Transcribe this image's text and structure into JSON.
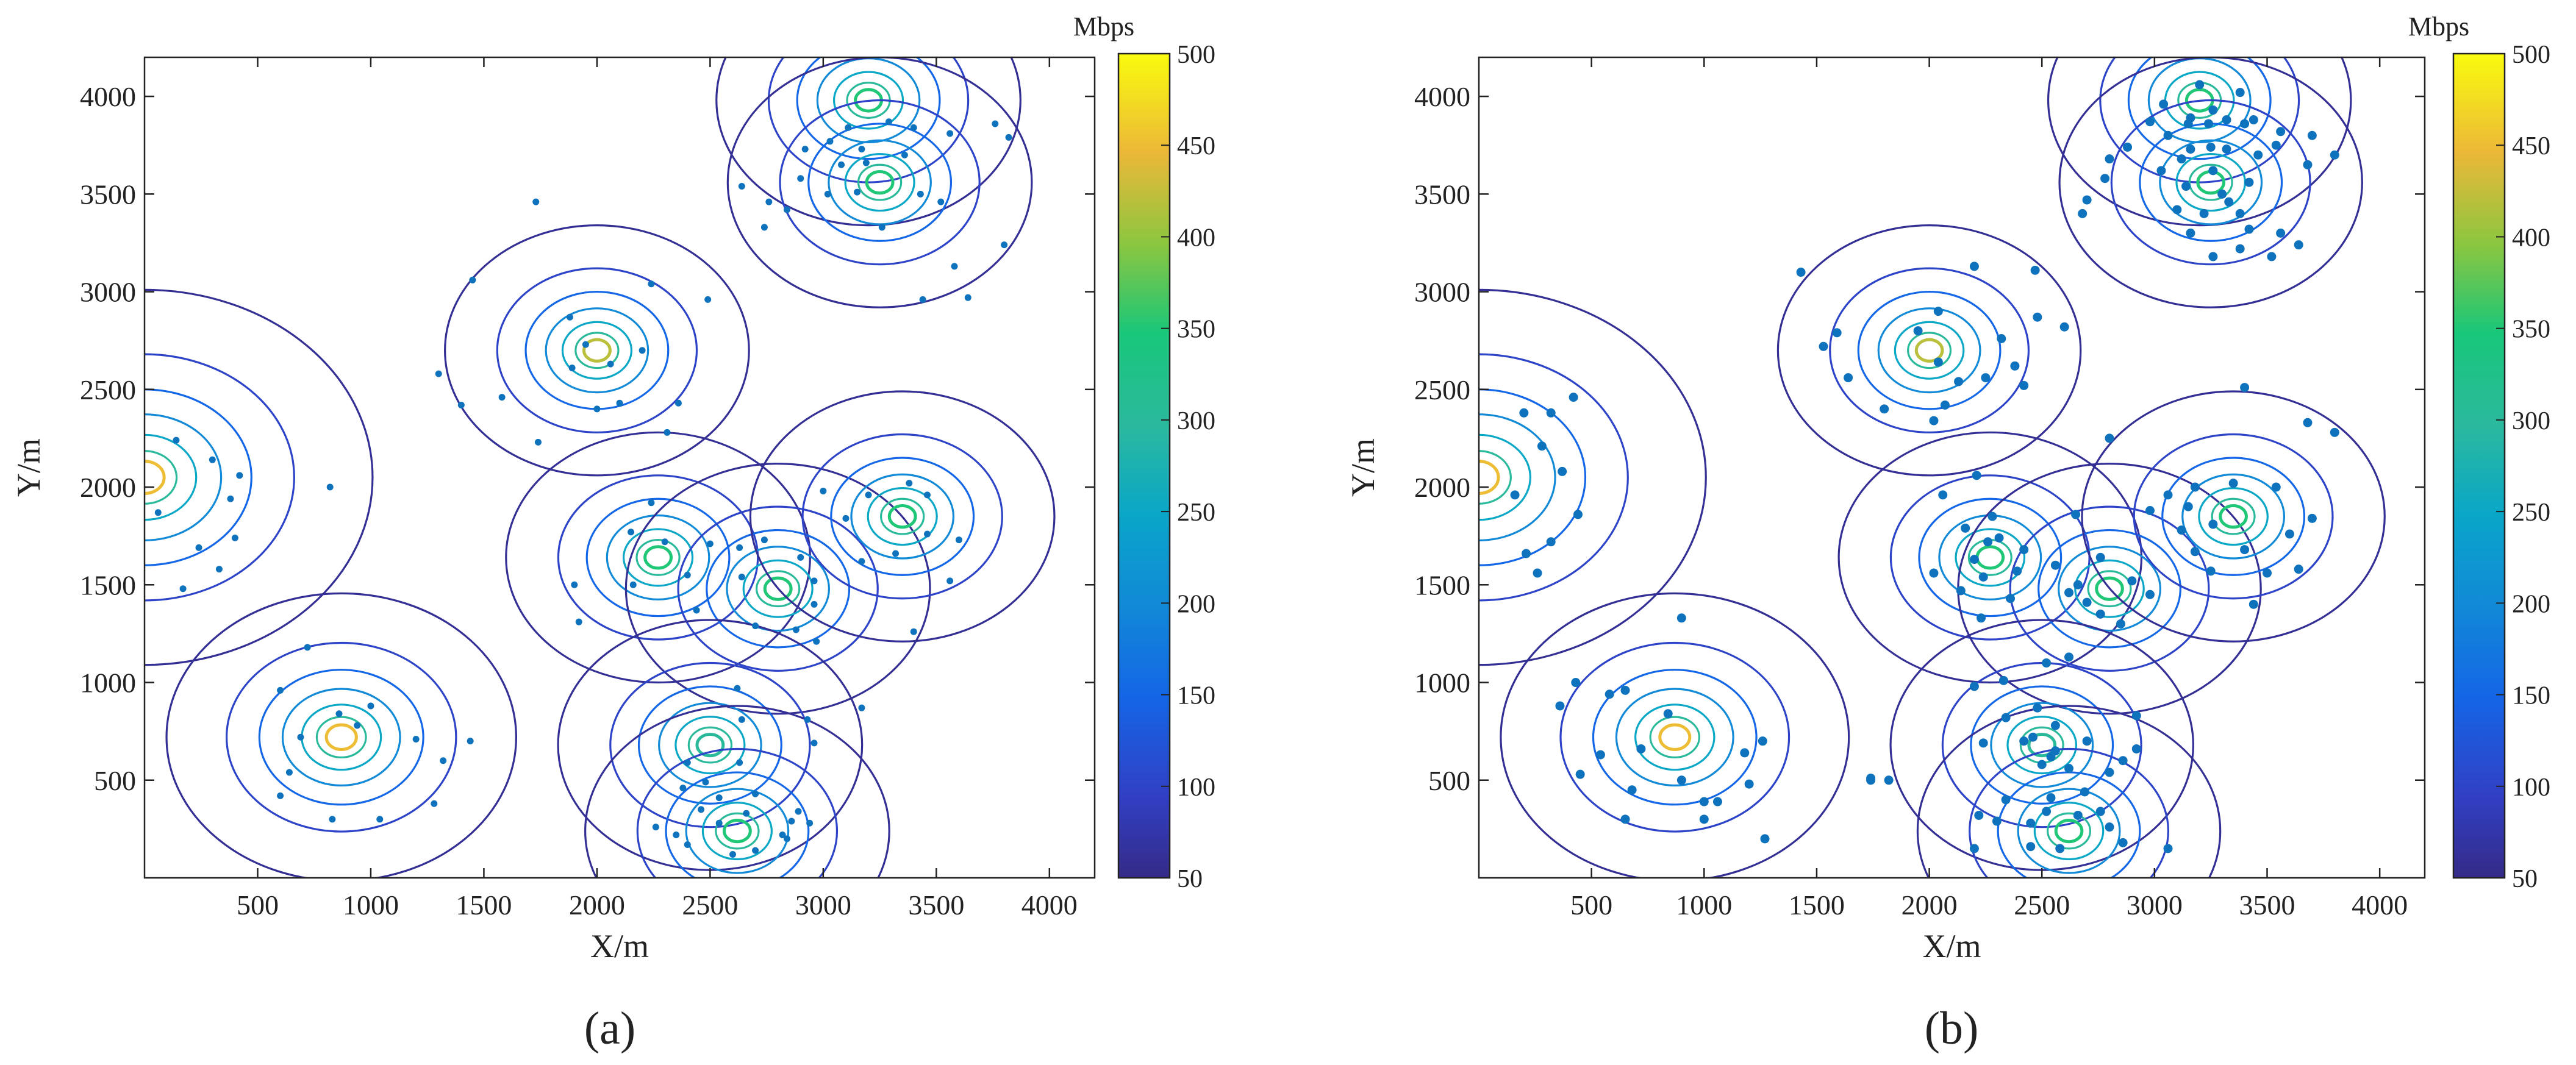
{
  "chart_data": [
    {
      "type": "contour",
      "panel_label": "(a)",
      "xlabel": "X/m",
      "ylabel": "Y/m",
      "xlim": [
        0,
        4200
      ],
      "ylim": [
        0,
        4200
      ],
      "xticks": [
        500,
        1000,
        1500,
        2000,
        2500,
        3000,
        3500,
        4000
      ],
      "yticks": [
        500,
        1000,
        1500,
        2000,
        2500,
        3000,
        3500,
        4000
      ],
      "colorbar": {
        "unit": "Mbps",
        "range": [
          50,
          500
        ],
        "ticks": [
          50,
          100,
          150,
          200,
          250,
          300,
          350,
          400,
          450,
          500
        ]
      },
      "stations": [
        {
          "x": 0,
          "y": 2050,
          "peak": 450
        },
        {
          "x": 870,
          "y": 720,
          "peak": 450
        },
        {
          "x": 2000,
          "y": 2700,
          "peak": 420
        },
        {
          "x": 2270,
          "y": 1640,
          "peak": 350
        },
        {
          "x": 2800,
          "y": 1480,
          "peak": 350
        },
        {
          "x": 3350,
          "y": 1850,
          "peak": 350
        },
        {
          "x": 2500,
          "y": 680,
          "peak": 300
        },
        {
          "x": 2620,
          "y": 240,
          "peak": 350
        },
        {
          "x": 3200,
          "y": 3980,
          "peak": 350
        },
        {
          "x": 3250,
          "y": 3560,
          "peak": 350
        }
      ],
      "users": [
        [
          140,
          2240
        ],
        [
          60,
          1870
        ],
        [
          240,
          1690
        ],
        [
          400,
          1740
        ],
        [
          330,
          1580
        ],
        [
          170,
          1480
        ],
        [
          420,
          2060
        ],
        [
          820,
          2000
        ],
        [
          300,
          2140
        ],
        [
          380,
          1940
        ],
        [
          720,
          1180
        ],
        [
          600,
          960
        ],
        [
          860,
          840
        ],
        [
          940,
          780
        ],
        [
          690,
          720
        ],
        [
          640,
          540
        ],
        [
          600,
          420
        ],
        [
          830,
          300
        ],
        [
          1040,
          300
        ],
        [
          1200,
          710
        ],
        [
          1320,
          600
        ],
        [
          1280,
          380
        ],
        [
          1440,
          700
        ],
        [
          1000,
          880
        ],
        [
          1730,
          3460
        ],
        [
          1450,
          3060
        ],
        [
          1300,
          2580
        ],
        [
          1400,
          2420
        ],
        [
          1580,
          2460
        ],
        [
          1740,
          2230
        ],
        [
          1880,
          2870
        ],
        [
          2060,
          2630
        ],
        [
          2200,
          2700
        ],
        [
          2360,
          2430
        ],
        [
          2240,
          3040
        ],
        [
          2490,
          2960
        ],
        [
          2000,
          2400
        ],
        [
          1890,
          2610
        ],
        [
          2100,
          2430
        ],
        [
          1950,
          2730
        ],
        [
          2310,
          2280
        ],
        [
          2150,
          1770
        ],
        [
          2400,
          1550
        ],
        [
          2440,
          1370
        ],
        [
          2160,
          1500
        ],
        [
          1900,
          1500
        ],
        [
          1920,
          1310
        ],
        [
          2300,
          1720
        ],
        [
          2240,
          1920
        ],
        [
          2500,
          1710
        ],
        [
          2640,
          1540
        ],
        [
          2740,
          1730
        ],
        [
          2900,
          1640
        ],
        [
          2960,
          1400
        ],
        [
          2880,
          1270
        ],
        [
          2700,
          1290
        ],
        [
          2970,
          1210
        ],
        [
          2960,
          1520
        ],
        [
          2630,
          1690
        ],
        [
          3100,
          1840
        ],
        [
          3200,
          1960
        ],
        [
          3460,
          1760
        ],
        [
          3600,
          1730
        ],
        [
          3380,
          2020
        ],
        [
          3560,
          1520
        ],
        [
          3400,
          1260
        ],
        [
          3170,
          1620
        ],
        [
          3460,
          1960
        ],
        [
          3000,
          1980
        ],
        [
          3320,
          1660
        ],
        [
          2400,
          590
        ],
        [
          2640,
          810
        ],
        [
          2930,
          810
        ],
        [
          2960,
          690
        ],
        [
          3170,
          870
        ],
        [
          2630,
          590
        ],
        [
          2480,
          490
        ],
        [
          2380,
          460
        ],
        [
          2540,
          410
        ],
        [
          2600,
          120
        ],
        [
          2400,
          170
        ],
        [
          2260,
          260
        ],
        [
          2840,
          200
        ],
        [
          2890,
          340
        ],
        [
          2940,
          280
        ],
        [
          2820,
          220
        ],
        [
          2660,
          330
        ],
        [
          2700,
          140
        ],
        [
          2460,
          350
        ],
        [
          2540,
          280
        ],
        [
          2620,
          970
        ],
        [
          2350,
          220
        ],
        [
          2700,
          430
        ],
        [
          2860,
          290
        ],
        [
          3290,
          3870
        ],
        [
          3400,
          3840
        ],
        [
          3560,
          3810
        ],
        [
          3760,
          3860
        ],
        [
          3820,
          3790
        ],
        [
          3170,
          3730
        ],
        [
          3030,
          3770
        ],
        [
          2920,
          3730
        ],
        [
          2640,
          3540
        ],
        [
          2760,
          3460
        ],
        [
          2740,
          3330
        ],
        [
          3020,
          3500
        ],
        [
          3260,
          3330
        ],
        [
          3430,
          3500
        ],
        [
          3520,
          3460
        ],
        [
          3580,
          3130
        ],
        [
          3640,
          2970
        ],
        [
          3440,
          2960
        ],
        [
          3800,
          3240
        ],
        [
          2900,
          3580
        ],
        [
          3110,
          3840
        ],
        [
          3190,
          3660
        ],
        [
          3080,
          3650
        ],
        [
          3360,
          3700
        ],
        [
          3150,
          3510
        ],
        [
          2840,
          3420
        ]
      ]
    },
    {
      "type": "contour",
      "panel_label": "(b)",
      "xlabel": "X/m",
      "ylabel": "Y/m",
      "xlim": [
        0,
        4200
      ],
      "ylim": [
        0,
        4200
      ],
      "xticks": [
        500,
        1000,
        1500,
        2000,
        2500,
        3000,
        3500,
        4000
      ],
      "yticks": [
        500,
        1000,
        1500,
        2000,
        2500,
        3000,
        3500,
        4000
      ],
      "colorbar": {
        "unit": "Mbps",
        "range": [
          50,
          500
        ],
        "ticks": [
          50,
          100,
          150,
          200,
          250,
          300,
          350,
          400,
          450,
          500
        ]
      },
      "stations": [
        {
          "x": 0,
          "y": 2050,
          "peak": 450
        },
        {
          "x": 870,
          "y": 720,
          "peak": 450
        },
        {
          "x": 2000,
          "y": 2700,
          "peak": 420
        },
        {
          "x": 2270,
          "y": 1640,
          "peak": 350
        },
        {
          "x": 2800,
          "y": 1480,
          "peak": 350
        },
        {
          "x": 3350,
          "y": 1850,
          "peak": 350
        },
        {
          "x": 2500,
          "y": 680,
          "peak": 300
        },
        {
          "x": 2620,
          "y": 240,
          "peak": 350
        },
        {
          "x": 3200,
          "y": 3980,
          "peak": 350
        },
        {
          "x": 3250,
          "y": 3560,
          "peak": 350
        }
      ],
      "users": [
        [
          200,
          2380
        ],
        [
          320,
          2380
        ],
        [
          420,
          2460
        ],
        [
          280,
          2210
        ],
        [
          370,
          2080
        ],
        [
          160,
          1960
        ],
        [
          440,
          1860
        ],
        [
          320,
          1720
        ],
        [
          210,
          1660
        ],
        [
          260,
          1560
        ],
        [
          900,
          1330
        ],
        [
          430,
          1000
        ],
        [
          650,
          960
        ],
        [
          360,
          880
        ],
        [
          580,
          940
        ],
        [
          840,
          840
        ],
        [
          540,
          630
        ],
        [
          720,
          660
        ],
        [
          680,
          450
        ],
        [
          900,
          500
        ],
        [
          450,
          530
        ],
        [
          650,
          300
        ],
        [
          1000,
          390
        ],
        [
          1060,
          390
        ],
        [
          1180,
          640
        ],
        [
          1260,
          700
        ],
        [
          1200,
          480
        ],
        [
          1000,
          300
        ],
        [
          1270,
          200
        ],
        [
          1430,
          3100
        ],
        [
          1590,
          2790
        ],
        [
          1530,
          2720
        ],
        [
          1640,
          2560
        ],
        [
          2040,
          2900
        ],
        [
          2200,
          3130
        ],
        [
          2470,
          3110
        ],
        [
          2480,
          2870
        ],
        [
          2320,
          2760
        ],
        [
          2380,
          2620
        ],
        [
          2020,
          2340
        ],
        [
          2130,
          2540
        ],
        [
          2070,
          2420
        ],
        [
          1800,
          2400
        ],
        [
          2250,
          2560
        ],
        [
          2600,
          2820
        ],
        [
          1950,
          2800
        ],
        [
          2040,
          2640
        ],
        [
          2420,
          2520
        ],
        [
          2060,
          1960
        ],
        [
          2210,
          2060
        ],
        [
          2260,
          1720
        ],
        [
          2200,
          1630
        ],
        [
          2390,
          1570
        ],
        [
          2360,
          1430
        ],
        [
          2140,
          1470
        ],
        [
          2020,
          1560
        ],
        [
          2420,
          1680
        ],
        [
          2240,
          1540
        ],
        [
          2310,
          1740
        ],
        [
          2160,
          1790
        ],
        [
          2230,
          1330
        ],
        [
          2280,
          1850
        ],
        [
          2660,
          1500
        ],
        [
          2700,
          1410
        ],
        [
          2560,
          1600
        ],
        [
          2760,
          1640
        ],
        [
          2900,
          1520
        ],
        [
          2980,
          1450
        ],
        [
          2760,
          1350
        ],
        [
          2850,
          1300
        ],
        [
          2620,
          1460
        ],
        [
          2650,
          1860
        ],
        [
          2980,
          1880
        ],
        [
          2800,
          2250
        ],
        [
          3260,
          1810
        ],
        [
          3120,
          1780
        ],
        [
          3150,
          1900
        ],
        [
          3350,
          2020
        ],
        [
          3400,
          1680
        ],
        [
          3180,
          1670
        ],
        [
          3600,
          1760
        ],
        [
          3500,
          1560
        ],
        [
          3440,
          1400
        ],
        [
          3250,
          1570
        ],
        [
          3640,
          1580
        ],
        [
          3700,
          1840
        ],
        [
          3400,
          2510
        ],
        [
          3680,
          2330
        ],
        [
          3800,
          2280
        ],
        [
          3180,
          2000
        ],
        [
          3540,
          2000
        ],
        [
          3060,
          1960
        ],
        [
          2620,
          1130
        ],
        [
          2520,
          1100
        ],
        [
          2330,
          1010
        ],
        [
          2200,
          980
        ],
        [
          2480,
          870
        ],
        [
          2560,
          780
        ],
        [
          2460,
          720
        ],
        [
          2540,
          620
        ],
        [
          2620,
          560
        ],
        [
          2700,
          700
        ],
        [
          2240,
          690
        ],
        [
          2340,
          820
        ],
        [
          2800,
          540
        ],
        [
          2860,
          600
        ],
        [
          2920,
          660
        ],
        [
          2920,
          830
        ],
        [
          1740,
          500
        ],
        [
          1820,
          500
        ],
        [
          1740,
          510
        ],
        [
          3060,
          150
        ],
        [
          2300,
          290
        ],
        [
          2220,
          320
        ],
        [
          2450,
          280
        ],
        [
          2520,
          340
        ],
        [
          2660,
          320
        ],
        [
          2760,
          340
        ],
        [
          2800,
          260
        ],
        [
          2860,
          180
        ],
        [
          2580,
          150
        ],
        [
          2450,
          160
        ],
        [
          2200,
          150
        ],
        [
          2340,
          400
        ],
        [
          2540,
          410
        ],
        [
          2690,
          440
        ],
        [
          2500,
          580
        ],
        [
          2560,
          650
        ],
        [
          2420,
          700
        ],
        [
          3160,
          3890
        ],
        [
          3240,
          3860
        ],
        [
          3320,
          3880
        ],
        [
          3400,
          3860
        ],
        [
          3560,
          3820
        ],
        [
          3700,
          3800
        ],
        [
          3800,
          3700
        ],
        [
          3680,
          3650
        ],
        [
          3540,
          3750
        ],
        [
          3460,
          3700
        ],
        [
          3320,
          3730
        ],
        [
          3250,
          3740
        ],
        [
          3160,
          3730
        ],
        [
          3060,
          3800
        ],
        [
          2980,
          3870
        ],
        [
          2880,
          3740
        ],
        [
          2800,
          3680
        ],
        [
          2780,
          3580
        ],
        [
          2700,
          3470
        ],
        [
          2680,
          3400
        ],
        [
          3030,
          3620
        ],
        [
          3140,
          3540
        ],
        [
          3220,
          3400
        ],
        [
          3330,
          3460
        ],
        [
          3420,
          3560
        ],
        [
          3380,
          3400
        ],
        [
          3420,
          3320
        ],
        [
          3560,
          3300
        ],
        [
          3640,
          3240
        ],
        [
          3520,
          3180
        ],
        [
          3380,
          3220
        ],
        [
          3260,
          3180
        ],
        [
          3160,
          3300
        ],
        [
          3100,
          3420
        ],
        [
          3260,
          3620
        ],
        [
          3300,
          3500
        ],
        [
          3120,
          3680
        ],
        [
          3040,
          3960
        ],
        [
          3200,
          4060
        ],
        [
          3380,
          4020
        ],
        [
          3260,
          3930
        ],
        [
          3440,
          3880
        ],
        [
          3150,
          3860
        ]
      ]
    }
  ]
}
